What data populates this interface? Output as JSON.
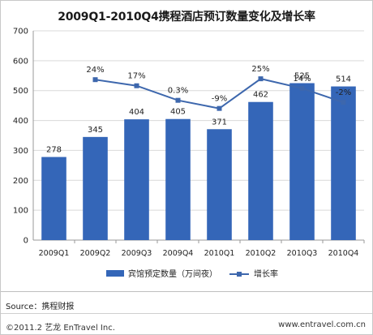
{
  "chart_data": {
    "type": "bar",
    "title": "2009Q1-2010Q4携程酒店预订数量变化及增长率",
    "categories": [
      "2009Q1",
      "2009Q2",
      "2009Q3",
      "2009Q4",
      "2010Q1",
      "2010Q2",
      "2010Q3",
      "2010Q4"
    ],
    "series": [
      {
        "name": "宾馆预定数量（万间夜）",
        "type": "bar",
        "axis": "left",
        "values": [
          278,
          345,
          404,
          405,
          371,
          462,
          525,
          514
        ],
        "labels": [
          "278",
          "345",
          "404",
          "405",
          "371",
          "462",
          "525",
          "514"
        ],
        "color": "#3466b8"
      },
      {
        "name": "增长率",
        "type": "line",
        "axis": "right",
        "values": [
          null,
          24,
          17,
          0.3,
          -9,
          25,
          14,
          -2
        ],
        "labels": [
          "",
          "24%",
          "17%",
          "0.3%",
          "-9%",
          "25%",
          "14%",
          "-2%"
        ],
        "color": "#3d67ad"
      }
    ],
    "ylim": [
      0,
      700
    ],
    "yticks": [
      0,
      100,
      200,
      300,
      400,
      500,
      600,
      700
    ],
    "y2lim": [
      -160,
      80
    ],
    "grid": true,
    "legend_position": "bottom"
  },
  "source": "Source：携程财报",
  "copyright": "©2011.2 艺龙 EnTravel Inc.",
  "website": "www.entravel.com.cn"
}
